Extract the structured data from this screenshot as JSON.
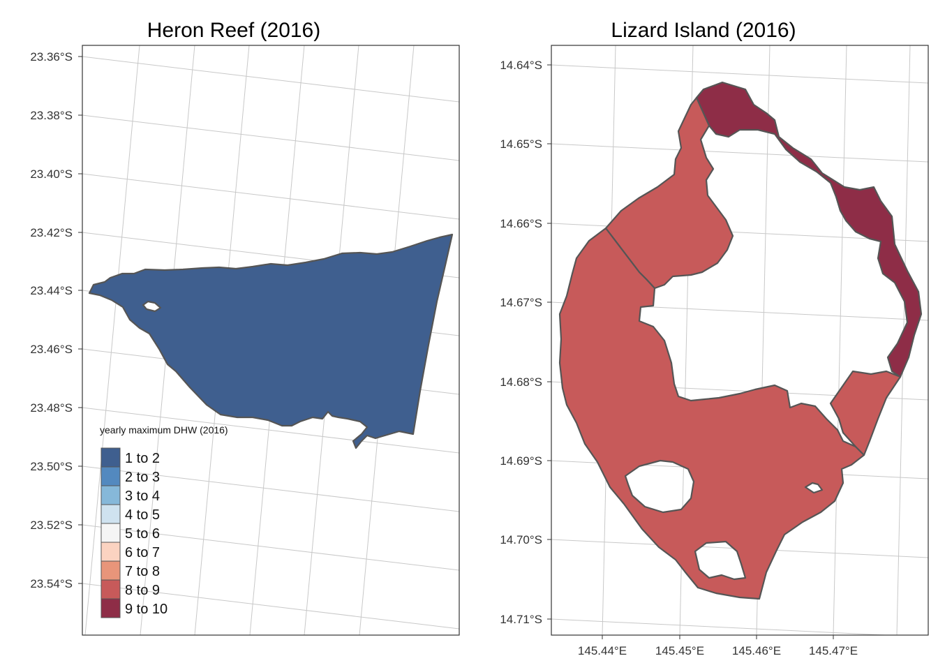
{
  "panels": [
    {
      "title": "Heron Reef (2016)",
      "lat_ticks": [
        "23.36°S",
        "23.38°S",
        "23.40°S",
        "23.42°S",
        "23.44°S",
        "23.46°S",
        "23.48°S",
        "23.50°S",
        "23.52°S",
        "23.54°S"
      ],
      "lon_ticks": [],
      "regions": [
        {
          "name": "Heron Reef",
          "dhw_class": "1 to 2",
          "color": "#3f5f8f"
        }
      ]
    },
    {
      "title": "Lizard Island (2016)",
      "lat_ticks": [
        "14.64°S",
        "14.65°S",
        "14.66°S",
        "14.67°S",
        "14.68°S",
        "14.69°S",
        "14.70°S",
        "14.71°S"
      ],
      "lon_ticks": [
        "145.44°E",
        "145.45°E",
        "145.46°E",
        "145.47°E"
      ],
      "regions": [
        {
          "name": "northeast rim",
          "dhw_class": "9 to 10",
          "color": "#8e2d47"
        },
        {
          "name": "northwest section",
          "dhw_class": "8 to 9",
          "color": "#c75a5a"
        },
        {
          "name": "western and southern section",
          "dhw_class": "8 to 9",
          "color": "#c75a5a"
        },
        {
          "name": "southeast section",
          "dhw_class": "8 to 9",
          "color": "#c75a5a"
        }
      ]
    }
  ],
  "legend": {
    "title": "yearly maximum DHW (2016)",
    "items": [
      {
        "label": "1 to 2",
        "color": "#3f5f8f"
      },
      {
        "label": "2 to 3",
        "color": "#5389bf"
      },
      {
        "label": "3 to 4",
        "color": "#86b8d9"
      },
      {
        "label": "4 to 5",
        "color": "#cfe2ef"
      },
      {
        "label": "5 to 6",
        "color": "#f5f5f5"
      },
      {
        "label": "6 to 7",
        "color": "#fbd3c1"
      },
      {
        "label": "7 to 8",
        "color": "#e8957a"
      },
      {
        "label": "8 to 9",
        "color": "#c75a5a"
      },
      {
        "label": "9 to 10",
        "color": "#8e2d47"
      }
    ]
  }
}
